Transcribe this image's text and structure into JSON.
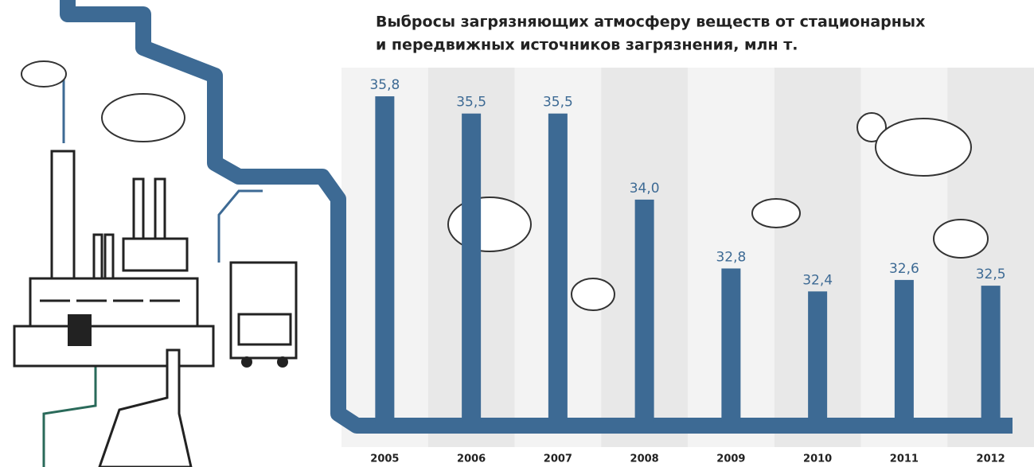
{
  "chart_data": {
    "type": "bar",
    "title_lines": [
      "Выбросы загрязняющих атмосферу веществ от стационарных",
      "и передвижных источников загрязнения, млн т."
    ],
    "categories": [
      "2005",
      "2006",
      "2007",
      "2008",
      "2009",
      "2010",
      "2011",
      "2012"
    ],
    "values": [
      35.8,
      35.5,
      35.5,
      34.0,
      32.8,
      32.4,
      32.6,
      32.5
    ],
    "value_labels": [
      "35,8",
      "35,5",
      "35,5",
      "34,0",
      "32,8",
      "32,4",
      "32,6",
      "32,5"
    ],
    "color": "#3d6a94",
    "ylim": [
      30.2,
      36.3
    ]
  }
}
